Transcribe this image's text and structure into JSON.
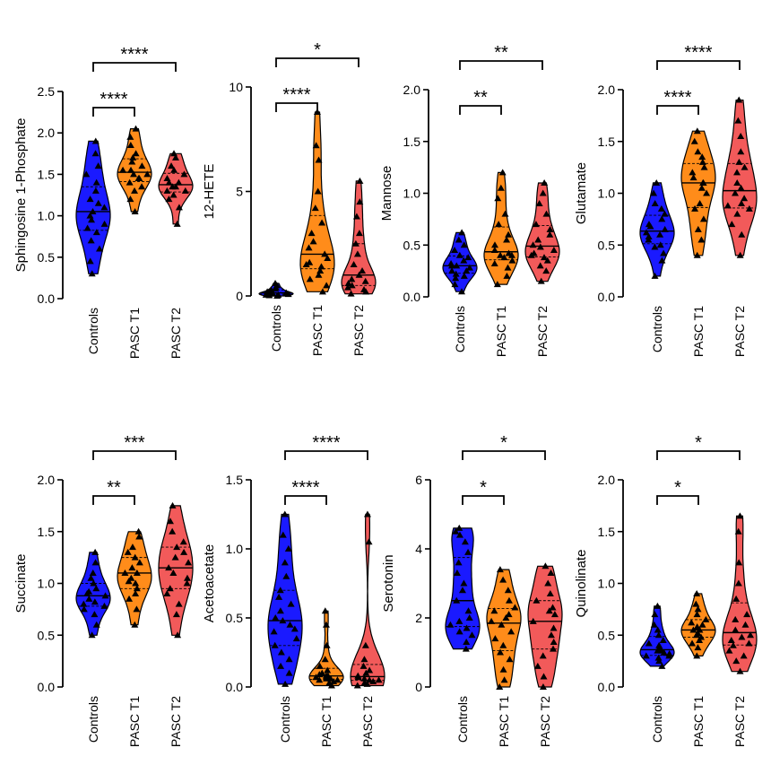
{
  "colors": {
    "Controls": "#1a1aff",
    "PASC T1": "#ff8c1a",
    "PASC T2": "#f25a5a",
    "markers": "#000000"
  },
  "chart_data": [
    {
      "type": "violin",
      "ylabel": "Sphingosine 1-Phosphate",
      "ylim": [
        0,
        2.5
      ],
      "yticks": [
        "0.0",
        "0.5",
        "1.0",
        "1.5",
        "2.0",
        "2.5"
      ],
      "categories": [
        "Controls",
        "PASC T1",
        "PASC T2"
      ],
      "series": [
        {
          "values": [
            0.3,
            0.45,
            0.6,
            0.7,
            0.8,
            0.85,
            0.9,
            0.95,
            1.0,
            1.05,
            1.1,
            1.15,
            1.2,
            1.3,
            1.4,
            1.5,
            1.6,
            1.75,
            1.9
          ]
        },
        {
          "values": [
            1.05,
            1.2,
            1.3,
            1.35,
            1.4,
            1.45,
            1.45,
            1.5,
            1.5,
            1.55,
            1.55,
            1.6,
            1.65,
            1.7,
            1.75,
            1.85,
            1.95,
            2.05
          ]
        },
        {
          "values": [
            0.9,
            1.1,
            1.2,
            1.25,
            1.3,
            1.3,
            1.35,
            1.35,
            1.4,
            1.4,
            1.45,
            1.5,
            1.55,
            1.6,
            1.7,
            1.75
          ]
        }
      ],
      "significance": [
        {
          "from": "Controls",
          "to": "PASC T1",
          "label": "****"
        },
        {
          "from": "Controls",
          "to": "PASC T2",
          "label": "****"
        }
      ]
    },
    {
      "type": "violin",
      "ylabel": "12-HETE",
      "ylim": [
        0,
        10
      ],
      "yticks": [
        "0",
        "5",
        "10"
      ],
      "categories": [
        "Controls",
        "PASC T1",
        "PASC T2"
      ],
      "series": [
        {
          "values": [
            0.0,
            0.02,
            0.05,
            0.05,
            0.08,
            0.1,
            0.1,
            0.12,
            0.15,
            0.15,
            0.2,
            0.2,
            0.25,
            0.3,
            0.35,
            0.4,
            0.5,
            0.6
          ]
        },
        {
          "values": [
            0.2,
            0.5,
            0.8,
            1.0,
            1.2,
            1.4,
            1.5,
            1.6,
            1.8,
            2.0,
            2.3,
            2.6,
            3.0,
            3.5,
            4.2,
            5.0,
            6.5,
            7.2,
            8.8
          ]
        },
        {
          "values": [
            0.1,
            0.2,
            0.3,
            0.4,
            0.5,
            0.6,
            0.7,
            0.8,
            1.0,
            1.2,
            1.5,
            2.0,
            2.5,
            3.0,
            3.8,
            4.5,
            5.5
          ]
        }
      ],
      "significance": [
        {
          "from": "Controls",
          "to": "PASC T1",
          "label": "****"
        },
        {
          "from": "Controls",
          "to": "PASC T2",
          "label": "*"
        }
      ]
    },
    {
      "type": "violin",
      "ylabel": "Mannose",
      "ylim": [
        0,
        2.0
      ],
      "yticks": [
        "0.0",
        "0.5",
        "1.0",
        "1.5",
        "2.0"
      ],
      "categories": [
        "Controls",
        "PASC T1",
        "PASC T2"
      ],
      "series": [
        {
          "values": [
            0.05,
            0.12,
            0.18,
            0.2,
            0.22,
            0.25,
            0.25,
            0.28,
            0.3,
            0.3,
            0.32,
            0.35,
            0.38,
            0.4,
            0.45,
            0.5,
            0.55,
            0.62
          ]
        },
        {
          "values": [
            0.12,
            0.2,
            0.28,
            0.32,
            0.35,
            0.38,
            0.4,
            0.4,
            0.42,
            0.45,
            0.5,
            0.55,
            0.6,
            0.7,
            0.8,
            0.95,
            1.05,
            1.2
          ]
        },
        {
          "values": [
            0.15,
            0.25,
            0.3,
            0.35,
            0.38,
            0.4,
            0.42,
            0.45,
            0.48,
            0.5,
            0.55,
            0.6,
            0.65,
            0.7,
            0.8,
            0.9,
            1.0,
            1.1
          ]
        }
      ],
      "significance": [
        {
          "from": "Controls",
          "to": "PASC T1",
          "label": "**"
        },
        {
          "from": "Controls",
          "to": "PASC T2",
          "label": "**"
        }
      ]
    },
    {
      "type": "violin",
      "ylabel": "Glutamate",
      "ylim": [
        0,
        2.0
      ],
      "yticks": [
        "0.0",
        "0.5",
        "1.0",
        "1.5",
        "2.0"
      ],
      "categories": [
        "Controls",
        "PASC T1",
        "PASC T2"
      ],
      "series": [
        {
          "values": [
            0.2,
            0.35,
            0.42,
            0.48,
            0.5,
            0.55,
            0.58,
            0.6,
            0.62,
            0.65,
            0.68,
            0.7,
            0.75,
            0.8,
            0.85,
            0.9,
            1.0,
            1.1
          ]
        },
        {
          "values": [
            0.4,
            0.55,
            0.65,
            0.75,
            0.85,
            0.9,
            1.0,
            1.05,
            1.1,
            1.1,
            1.15,
            1.2,
            1.25,
            1.3,
            1.35,
            1.4,
            1.5,
            1.6
          ]
        },
        {
          "values": [
            0.4,
            0.6,
            0.7,
            0.8,
            0.85,
            0.88,
            0.9,
            0.95,
            1.0,
            1.05,
            1.1,
            1.2,
            1.25,
            1.3,
            1.4,
            1.55,
            1.7,
            1.9
          ]
        }
      ],
      "significance": [
        {
          "from": "Controls",
          "to": "PASC T1",
          "label": "****"
        },
        {
          "from": "Controls",
          "to": "PASC T2",
          "label": "****"
        }
      ]
    },
    {
      "type": "violin",
      "ylabel": "Succinate",
      "ylim": [
        0,
        2.0
      ],
      "yticks": [
        "0.0",
        "0.5",
        "1.0",
        "1.5",
        "2.0"
      ],
      "categories": [
        "Controls",
        "PASC T1",
        "PASC T2"
      ],
      "series": [
        {
          "values": [
            0.5,
            0.6,
            0.7,
            0.75,
            0.78,
            0.8,
            0.82,
            0.85,
            0.88,
            0.9,
            0.92,
            0.95,
            1.0,
            1.05,
            1.1,
            1.2,
            1.3
          ]
        },
        {
          "values": [
            0.6,
            0.75,
            0.85,
            0.9,
            0.95,
            1.0,
            1.02,
            1.05,
            1.1,
            1.1,
            1.15,
            1.2,
            1.25,
            1.3,
            1.35,
            1.45,
            1.5
          ]
        },
        {
          "values": [
            0.5,
            0.7,
            0.8,
            0.9,
            0.95,
            1.0,
            1.05,
            1.1,
            1.15,
            1.2,
            1.25,
            1.3,
            1.35,
            1.4,
            1.5,
            1.6,
            1.75
          ]
        }
      ],
      "significance": [
        {
          "from": "Controls",
          "to": "PASC T1",
          "label": "**"
        },
        {
          "from": "Controls",
          "to": "PASC T2",
          "label": "***"
        }
      ]
    },
    {
      "type": "violin",
      "ylabel": "Acetoacetate",
      "ylim": [
        0,
        1.5
      ],
      "yticks": [
        "0.0",
        "0.5",
        "1.0",
        "1.5"
      ],
      "categories": [
        "Controls",
        "PASC T1",
        "PASC T2"
      ],
      "series": [
        {
          "values": [
            0.02,
            0.1,
            0.15,
            0.2,
            0.25,
            0.3,
            0.35,
            0.4,
            0.42,
            0.45,
            0.48,
            0.5,
            0.55,
            0.6,
            0.65,
            0.7,
            0.8,
            0.9,
            1.0,
            1.1,
            1.25
          ]
        },
        {
          "values": [
            0.01,
            0.03,
            0.04,
            0.05,
            0.05,
            0.06,
            0.06,
            0.07,
            0.07,
            0.08,
            0.08,
            0.09,
            0.1,
            0.12,
            0.15,
            0.2,
            0.3,
            0.45,
            0.55
          ]
        },
        {
          "values": [
            0.01,
            0.02,
            0.03,
            0.04,
            0.05,
            0.05,
            0.06,
            0.07,
            0.08,
            0.1,
            0.12,
            0.15,
            0.2,
            0.3,
            1.05,
            1.25
          ]
        }
      ],
      "significance": [
        {
          "from": "Controls",
          "to": "PASC T1",
          "label": "****"
        },
        {
          "from": "Controls",
          "to": "PASC T2",
          "label": "****"
        }
      ]
    },
    {
      "type": "violin",
      "ylabel": "Serotonin",
      "ylim": [
        0,
        6
      ],
      "yticks": [
        "0",
        "2",
        "4",
        "6"
      ],
      "categories": [
        "Controls",
        "PASC T1",
        "PASC T2"
      ],
      "series": [
        {
          "values": [
            1.1,
            1.3,
            1.5,
            1.6,
            1.7,
            1.8,
            1.9,
            2.0,
            2.2,
            2.5,
            2.8,
            3.0,
            3.3,
            3.6,
            3.9,
            4.2,
            4.4,
            4.5,
            4.6
          ]
        },
        {
          "values": [
            0.0,
            0.2,
            0.5,
            0.8,
            1.0,
            1.2,
            1.4,
            1.6,
            1.8,
            1.9,
            2.0,
            2.1,
            2.2,
            2.3,
            2.5,
            2.8,
            3.1,
            3.4
          ]
        },
        {
          "values": [
            0.0,
            0.3,
            0.6,
            0.9,
            1.1,
            1.3,
            1.5,
            1.7,
            1.9,
            2.1,
            2.2,
            2.3,
            2.5,
            2.7,
            3.0,
            3.3,
            3.5
          ]
        }
      ],
      "significance": [
        {
          "from": "Controls",
          "to": "PASC T1",
          "label": "*"
        },
        {
          "from": "Controls",
          "to": "PASC T2",
          "label": "*"
        }
      ]
    },
    {
      "type": "violin",
      "ylabel": "Quinolinate",
      "ylim": [
        0,
        2.0
      ],
      "yticks": [
        "0.0",
        "0.5",
        "1.0",
        "1.5",
        "2.0"
      ],
      "categories": [
        "Controls",
        "PASC T1",
        "PASC T2"
      ],
      "series": [
        {
          "values": [
            0.2,
            0.25,
            0.28,
            0.3,
            0.3,
            0.32,
            0.33,
            0.35,
            0.35,
            0.37,
            0.4,
            0.42,
            0.45,
            0.5,
            0.55,
            0.6,
            0.7,
            0.78
          ]
        },
        {
          "values": [
            0.3,
            0.38,
            0.42,
            0.45,
            0.48,
            0.5,
            0.52,
            0.55,
            0.55,
            0.58,
            0.6,
            0.62,
            0.65,
            0.7,
            0.75,
            0.8,
            0.9
          ]
        },
        {
          "values": [
            0.15,
            0.25,
            0.3,
            0.35,
            0.4,
            0.42,
            0.45,
            0.48,
            0.5,
            0.55,
            0.6,
            0.65,
            0.7,
            0.85,
            1.0,
            1.2,
            1.5,
            1.65
          ]
        }
      ],
      "significance": [
        {
          "from": "Controls",
          "to": "PASC T1",
          "label": "*"
        },
        {
          "from": "Controls",
          "to": "PASC T2",
          "label": "*"
        }
      ]
    }
  ]
}
